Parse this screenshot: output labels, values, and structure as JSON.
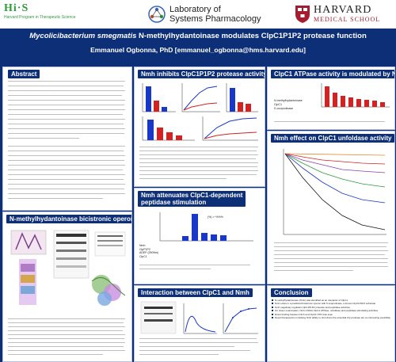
{
  "header": {
    "hms_logo": {
      "mark": "Hi·S",
      "sub1": "Harvard Program in Therapeutic Science"
    },
    "lsp_logo": {
      "line1": "Laboratory of",
      "line2": "Systems Pharmacology"
    },
    "harvard_logo": {
      "line1": "HARVARD",
      "line2": "MEDICAL SCHOOL"
    }
  },
  "title": {
    "italic": "Mycolicibacterium smegmatis",
    "rest": " N-methylhydantoinase modulates ClpC1P1P2 protease function"
  },
  "author": "Emmanuel Ogbonna, PhD [emmanuel_ogbonna@hms.harvard.edu]",
  "panels": {
    "abstract": "Abstract",
    "operon": "N-methylhydantoinase bicistronic operon",
    "inhibits": "Nmh inhibits ClpC1P1P2 protease activity",
    "attenuates_l1": "Nmh attenuates ClpC1-dependent",
    "attenuates_l2": "peptidase stimulation",
    "interaction": "Interaction between ClpC1 and Nmh",
    "atpase": "ClpC1 ATPase activity is modulated by Nmh",
    "unfoldase": "Nmh effect on ClpC1 unfoldase activity",
    "conclusion": "Conclusion"
  },
  "conclusion_bullets": [
    "N-methylhydantoinase (Nmh) was identified as an interactor of ClpC1",
    "Nmh exists in a predicted bicistronic operon with 5-oxoprolinase, a known ClpC1P1P2 substrate",
    "Nmh negatively regulates ClpC1P1P2 protease and peptidase activities",
    "On closer examination, Nmh inhibits ClpC1 ATPase, unfoldase and peptidase stimulating activities",
    "Direct binding between Nmh and ClpC1 NTD was seen",
    "Novel therapeutics mimicking Nmh ability to shut down the essential Clp protease are an interesting possibility"
  ],
  "atpase_legend": [
    "N-methylhydantoinase",
    "ClpC1",
    "D-oxoprolinase"
  ],
  "attenuates_legend": [
    "Nmh",
    "ClpP1P2",
    "ADEP (250Nm)",
    "ClpC1"
  ],
  "attenuates_stat": "(%) >~%%%",
  "colors": {
    "navy": "#0d2f78",
    "red": "#d32222",
    "blue": "#1a38c8",
    "green": "#2e9b3b",
    "crimson": "#a51c30"
  }
}
